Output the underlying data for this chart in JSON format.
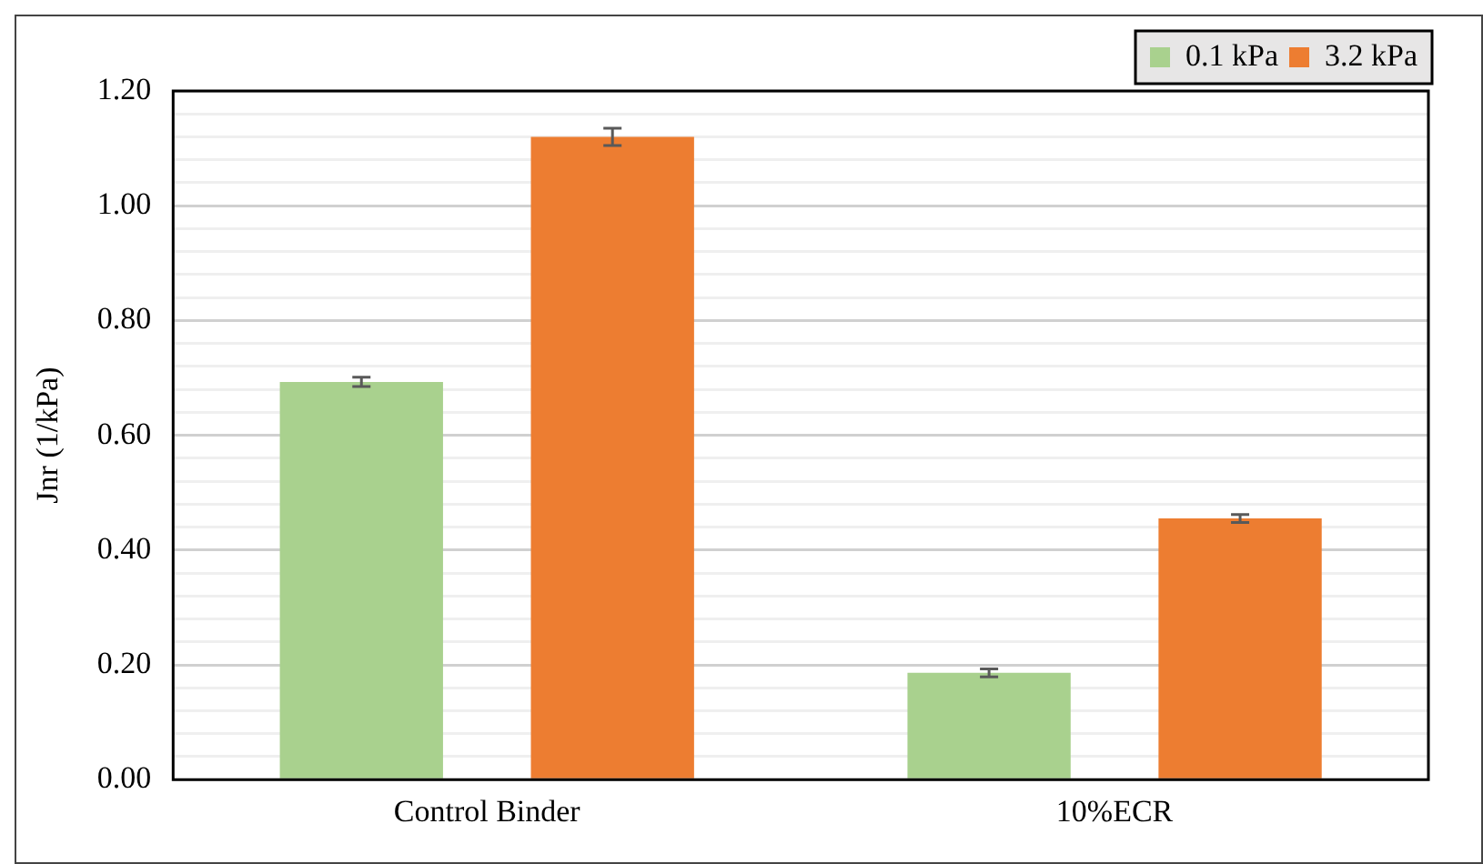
{
  "chart_data": {
    "type": "bar",
    "ylabel": "Jnr (1/kPa)",
    "categories": [
      "Control Binder",
      "10%ECR"
    ],
    "series": [
      {
        "name": "0.1 kPa",
        "color": "#a9d18e",
        "values": [
          0.693,
          0.186
        ],
        "errors": [
          0.008,
          0.007
        ]
      },
      {
        "name": "3.2 kPa",
        "color": "#ed7d31",
        "values": [
          1.12,
          0.455
        ],
        "errors": [
          0.015,
          0.007
        ]
      }
    ],
    "ylim": [
      0,
      1.2
    ],
    "yticks": [
      {
        "value": 0,
        "label": "0.00"
      },
      {
        "value": 0.04,
        "label": null
      },
      {
        "value": 0.08,
        "label": null
      },
      {
        "value": 0.12,
        "label": null
      },
      {
        "value": 0.16,
        "label": null
      },
      {
        "value": 0.2,
        "label": "0.20"
      },
      {
        "value": 0.24,
        "label": null
      },
      {
        "value": 0.28,
        "label": null
      },
      {
        "value": 0.32,
        "label": null
      },
      {
        "value": 0.36,
        "label": null
      },
      {
        "value": 0.4,
        "label": "0.40"
      },
      {
        "value": 0.44,
        "label": null
      },
      {
        "value": 0.48,
        "label": null
      },
      {
        "value": 0.52,
        "label": null
      },
      {
        "value": 0.56,
        "label": null
      },
      {
        "value": 0.6,
        "label": "0.60"
      },
      {
        "value": 0.64,
        "label": null
      },
      {
        "value": 0.68,
        "label": null
      },
      {
        "value": 0.72,
        "label": null
      },
      {
        "value": 0.76,
        "label": null
      },
      {
        "value": 0.8,
        "label": "0.80"
      },
      {
        "value": 0.84,
        "label": null
      },
      {
        "value": 0.88,
        "label": null
      },
      {
        "value": 0.92,
        "label": null
      },
      {
        "value": 0.96,
        "label": null
      },
      {
        "value": 1.0,
        "label": "1.00"
      },
      {
        "value": 1.04,
        "label": null
      },
      {
        "value": 1.08,
        "label": null
      },
      {
        "value": 1.12,
        "label": null
      },
      {
        "value": 1.16,
        "label": null
      },
      {
        "value": 1.2,
        "label": "1.20"
      }
    ],
    "grid": "y",
    "legend": "top right"
  }
}
